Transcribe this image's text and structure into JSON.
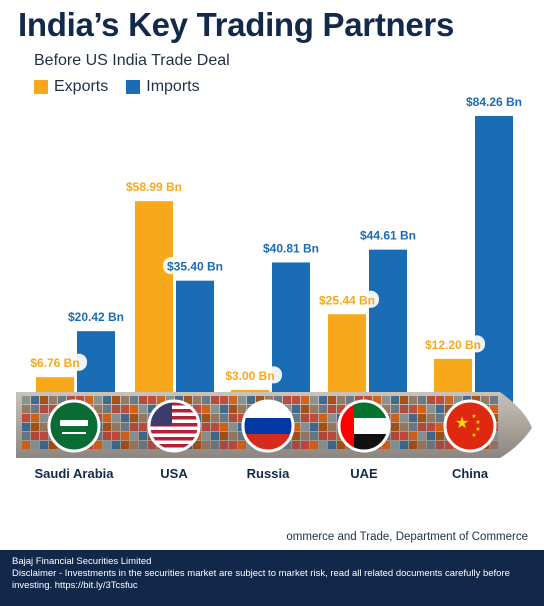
{
  "header": {
    "title": "India’s Key Trading Partners",
    "subtitle": "Before US India Trade Deal"
  },
  "colors": {
    "exports": "#f7a81b",
    "imports": "#1a6db5",
    "label_exports": "#f7a81b",
    "label_imports": "#1a6db5",
    "footer_bg": "#12284a"
  },
  "chart_data": {
    "type": "bar",
    "categories": [
      "Saudi Arabia",
      "USA",
      "Russia",
      "UAE",
      "China"
    ],
    "series": [
      {
        "name": "Exports",
        "values": [
          6.76,
          58.99,
          3.0,
          25.44,
          12.2
        ],
        "labels": [
          "$6.76 Bn",
          "$58.99 Bn",
          "$3.00 Bn",
          "$25.44 Bn",
          "$12.20 Bn"
        ]
      },
      {
        "name": "Imports",
        "values": [
          20.42,
          35.4,
          40.81,
          44.61,
          84.26
        ],
        "labels": [
          "$20.42 Bn",
          "$35.40 Bn",
          "$40.81 Bn",
          "$44.61 Bn",
          "$84.26 Bn"
        ]
      }
    ],
    "unit": "Bn",
    "legend_position": "top-left",
    "grid": false,
    "country_icons": [
      "saudi-arabia-flag-icon",
      "usa-flag-icon",
      "russia-flag-icon",
      "uae-flag-icon",
      "china-flag-icon"
    ],
    "background_icon": "cargo-ship-icon"
  },
  "source_text": "ommerce and Trade, Department of Commerce",
  "footer": {
    "company": "Bajaj Financial Securities Limited",
    "disclaimer": "Disclaimer - Investments in the securities market are subject to market risk, read all related documents carefully before investing. https://bit.ly/3Tcsfuc"
  }
}
